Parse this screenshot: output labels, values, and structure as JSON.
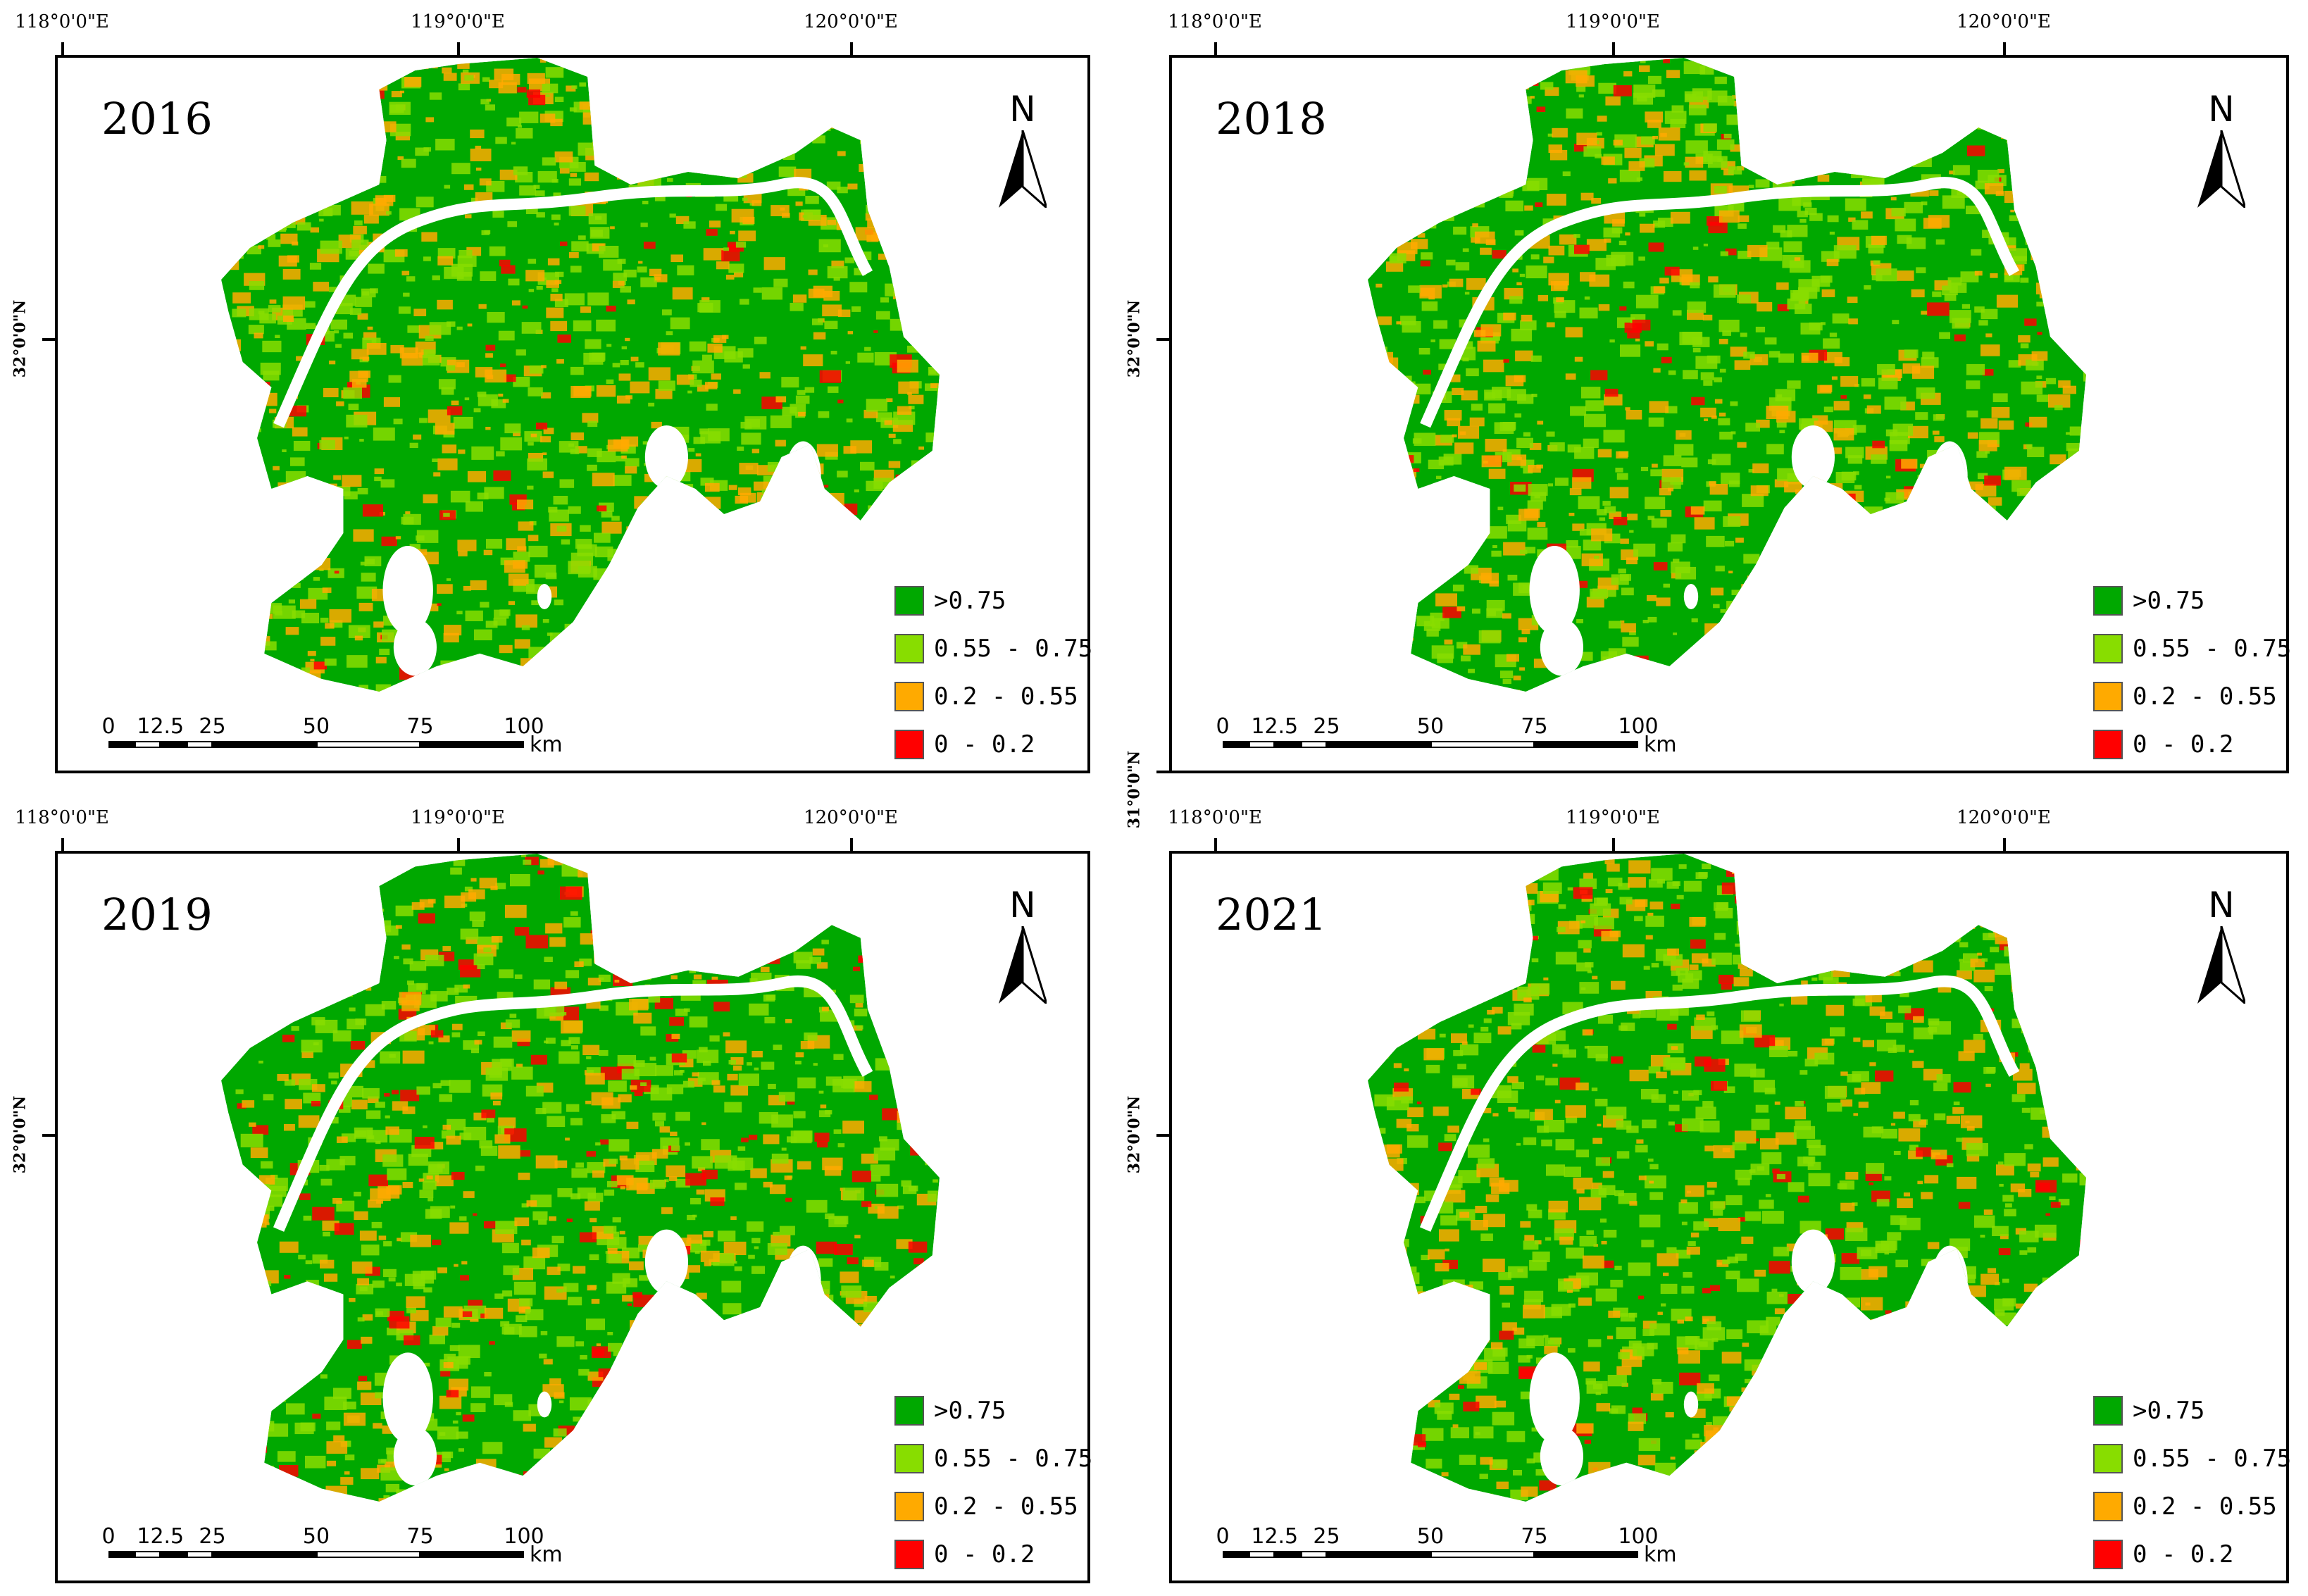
{
  "axes": {
    "lon_labels": [
      "118°0'0\"E",
      "119°0'0\"E",
      "120°0'0\"E"
    ],
    "lat_label_mid": "32°0'0\"N",
    "lat_label_low": "31°0'0\"N"
  },
  "north_arrow": {
    "label": "N"
  },
  "legend": [
    {
      "label": ">0.75",
      "color": "#00a800"
    },
    {
      "label": "0.55 - 0.75",
      "color": "#88dd00"
    },
    {
      "label": "0.2 - 0.55",
      "color": "#ffaa00"
    },
    {
      "label": "0 - 0.2",
      "color": "#ff0000"
    }
  ],
  "scale_bar": {
    "ticks": [
      "0",
      "12.5",
      "25",
      "50",
      "75",
      "100"
    ],
    "unit": "km"
  },
  "panels": [
    {
      "year": "2016"
    },
    {
      "year": "2018"
    },
    {
      "year": "2019"
    },
    {
      "year": "2021"
    }
  ]
}
